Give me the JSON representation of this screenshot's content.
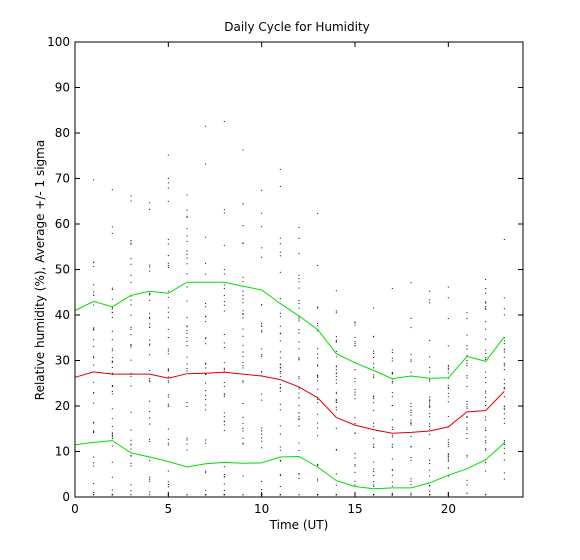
{
  "chart_data": {
    "type": "line",
    "title": "Daily Cycle for Humidity",
    "xlabel": "Time (UT)",
    "ylabel": "Relative humidity (%), Average +/- 1 sigma",
    "xlim": [
      0,
      24
    ],
    "ylim": [
      0,
      100
    ],
    "x_ticks": [
      0,
      5,
      10,
      15,
      20
    ],
    "y_ticks": [
      0,
      10,
      20,
      30,
      40,
      50,
      60,
      70,
      80,
      90,
      100
    ],
    "grid": false,
    "x": [
      0,
      1,
      2,
      3,
      4,
      5,
      6,
      7,
      8,
      9,
      10,
      11,
      12,
      13,
      14,
      15,
      16,
      17,
      18,
      19,
      20,
      21,
      22,
      23
    ],
    "series": [
      {
        "color": "#00dd00",
        "values": [
          41,
          43,
          41.8,
          44.3,
          45.2,
          44.8,
          47.2,
          47.2,
          47.2,
          46.3,
          45.5,
          42.5,
          39.8,
          36.8,
          31.5,
          29.5,
          27.8,
          26,
          26.6,
          26.1,
          26.2,
          30.9,
          29.8,
          35.2
        ]
      },
      {
        "color": "#dd0000",
        "values": [
          26.3,
          27.5,
          27,
          27,
          27,
          26.1,
          27.1,
          27.2,
          27.4,
          27,
          26.6,
          25.8,
          24.2,
          21.8,
          17.5,
          15.8,
          14.8,
          14,
          14.2,
          14.5,
          15.4,
          18.7,
          19,
          23.2
        ]
      },
      {
        "color": "#00dd00",
        "values": [
          11.5,
          12,
          12.4,
          9.7,
          8.8,
          7.8,
          6.6,
          7.3,
          7.6,
          7.4,
          7.5,
          8.8,
          8.9,
          6.6,
          3.6,
          2.3,
          1.8,
          2,
          2,
          3.1,
          4.8,
          6.2,
          8.2,
          11.9
        ]
      }
    ]
  }
}
